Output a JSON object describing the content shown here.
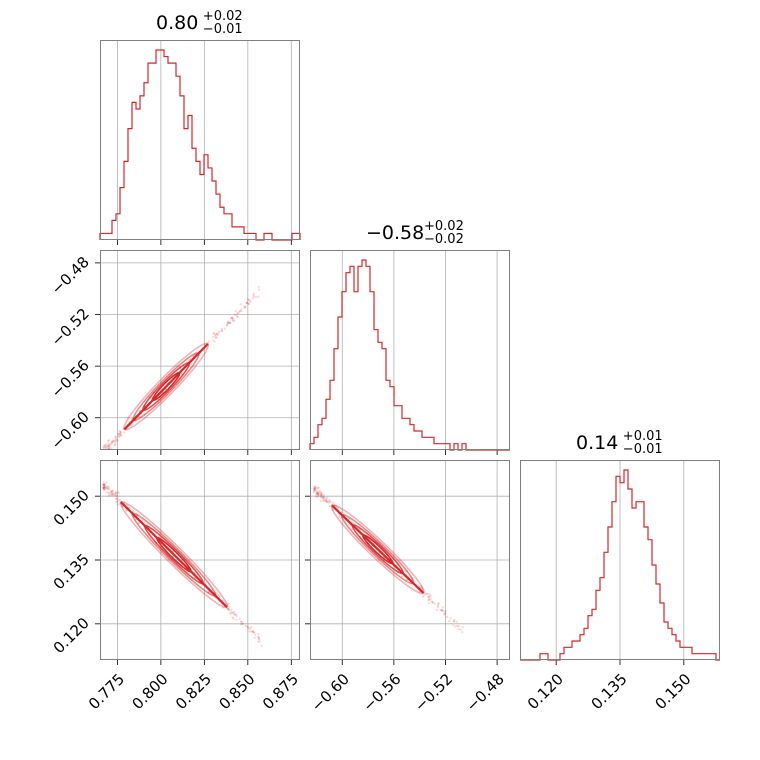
{
  "chart_data": {
    "type": "corner",
    "color": "#d62728",
    "grid": true,
    "params": [
      {
        "title": {
          "value": "0.80",
          "plus": "+0.02",
          "minus": "−0.01"
        },
        "range": [
          0.765,
          0.88
        ],
        "ticks": [
          0.775,
          0.8,
          0.825,
          0.85,
          0.875
        ],
        "tick_labels": [
          "0.775",
          "0.800",
          "0.825",
          "0.850",
          "0.875"
        ]
      },
      {
        "title": {
          "value": "−0.58",
          "plus": "+0.02",
          "minus": "−0.02"
        },
        "range": [
          -0.625,
          -0.47
        ],
        "ticks": [
          -0.6,
          -0.56,
          -0.52,
          -0.48
        ],
        "tick_labels": [
          "−0.60",
          "−0.56",
          "−0.52",
          "−0.48"
        ]
      },
      {
        "title": {
          "value": "0.14",
          "plus": "+0.01",
          "minus": "−0.01"
        },
        "range": [
          0.1115,
          0.1585
        ],
        "ticks": [
          0.12,
          0.135,
          0.15
        ],
        "tick_labels": [
          "0.120",
          "0.135",
          "0.150"
        ]
      }
    ],
    "histograms": [
      {
        "param": 0,
        "bin_start": 0.765,
        "bin_width": 0.0023,
        "counts": [
          1,
          1,
          1,
          3,
          4,
          8,
          12,
          17,
          21,
          20,
          22,
          24,
          27,
          27,
          29,
          29,
          28,
          27,
          27,
          25,
          22,
          17,
          19,
          14,
          12,
          10,
          13,
          11,
          9,
          7,
          5,
          4,
          4,
          2,
          2,
          2,
          1,
          1,
          1,
          0,
          0,
          1,
          1,
          0,
          0,
          0,
          0,
          0,
          1,
          1
        ]
      },
      {
        "param": 1,
        "bin_start": -0.625,
        "bin_width": 0.0031,
        "counts": [
          1,
          2,
          4,
          5,
          8,
          11,
          16,
          21,
          25,
          28,
          29,
          25,
          29,
          30,
          29,
          25,
          19,
          17,
          16,
          11,
          10,
          7,
          7,
          5,
          5,
          4,
          3,
          3,
          2,
          2,
          2,
          1,
          1,
          1,
          1,
          0,
          1,
          0,
          1,
          0,
          0,
          0,
          0,
          0,
          0,
          0,
          0,
          0,
          0,
          0
        ]
      },
      {
        "param": 2,
        "bin_start": 0.1115,
        "bin_width": 0.00094,
        "counts": [
          0,
          0,
          0,
          0,
          0,
          1,
          1,
          0,
          0,
          0,
          1,
          2,
          2,
          3,
          3,
          4,
          5,
          7,
          8,
          11,
          13,
          17,
          21,
          25,
          29,
          28,
          30,
          27,
          24,
          25,
          25,
          21,
          19,
          15,
          12,
          9,
          6,
          5,
          4,
          3,
          2,
          2,
          2,
          1,
          1,
          1,
          1,
          1,
          1,
          0
        ]
      }
    ],
    "pairs": [
      {
        "x_param": 0,
        "y_param": 1,
        "relation": {
          "slope": 1.38,
          "intercept": -1.684
        },
        "x_extent": [
          0.767,
          0.857
        ],
        "core": [
          0.779,
          0.827
        ]
      },
      {
        "x_param": 0,
        "y_param": 2,
        "relation": {
          "slope": -0.405,
          "intercept": 0.4633
        },
        "x_extent": [
          0.767,
          0.859
        ],
        "core": [
          0.777,
          0.838
        ]
      },
      {
        "x_param": 1,
        "y_param": 2,
        "relation": {
          "slope": -0.29,
          "intercept": -0.0285
        },
        "x_extent": [
          -0.622,
          -0.506
        ],
        "core": [
          -0.608,
          -0.537
        ]
      }
    ]
  }
}
